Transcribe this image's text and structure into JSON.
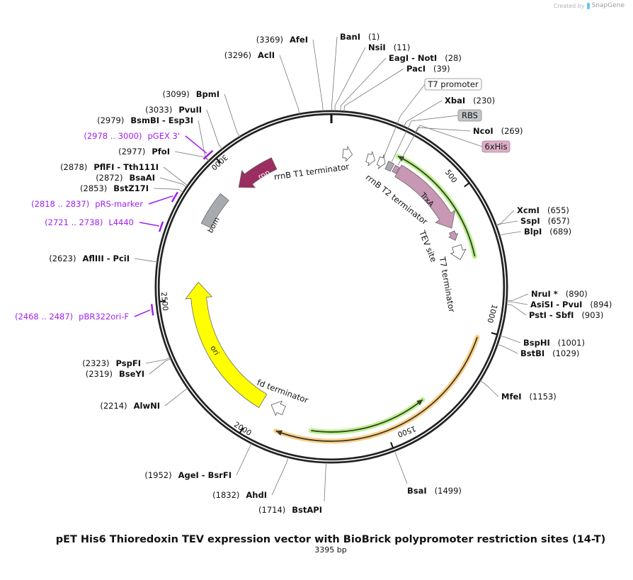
{
  "credit": {
    "prefix": "Created by",
    "brand": "SnapGene"
  },
  "title": "pET His6 Thioredoxin TEV expression vector with BioBrick polypromoter restriction sites (14-T)",
  "length_label": "3395 bp",
  "total_bp": 3395,
  "colors": {
    "backbone": "#222222",
    "primer": "#a020f0",
    "trxa": "#c897b3",
    "rop": "#9b2d61",
    "ori": "#ffff00",
    "grey_feature": "#a7abaf",
    "green_glow": "#b9f28c",
    "orange_glow": "#ffd08a"
  },
  "ticks": [
    {
      "bp": 500,
      "label": "500"
    },
    {
      "bp": 1000,
      "label": "1000"
    },
    {
      "bp": 1500,
      "label": "1500"
    },
    {
      "bp": 2000,
      "label": "2000"
    },
    {
      "bp": 2500,
      "label": "2500"
    },
    {
      "bp": 3000,
      "label": "3000"
    }
  ],
  "enzymes": [
    {
      "name": "AfeI",
      "pos": "(3369)",
      "bp": 3369
    },
    {
      "name": "AclI",
      "pos": "(3296)",
      "bp": 3296
    },
    {
      "name": "BpmI",
      "pos": "(3099)",
      "bp": 3099
    },
    {
      "name": "PvuII",
      "pos": "(3033)",
      "bp": 3033
    },
    {
      "name": "BsmBI  - Esp3I",
      "pos": "(2979)",
      "bp": 2979
    },
    {
      "name": "PfoI",
      "pos": "(2977)",
      "bp": 2977
    },
    {
      "name": "PflFI  - Tth111I",
      "pos": "(2878)",
      "bp": 2878
    },
    {
      "name": "BsaAI",
      "pos": "(2872)",
      "bp": 2872
    },
    {
      "name": "BstZ17I",
      "pos": "(2853)",
      "bp": 2853
    },
    {
      "name": "AflIII  - PciI",
      "pos": "(2623)",
      "bp": 2623
    },
    {
      "name": "PspFI",
      "pos": "(2323)",
      "bp": 2323
    },
    {
      "name": "BseYI",
      "pos": "(2319)",
      "bp": 2319
    },
    {
      "name": "AlwNI",
      "pos": "(2214)",
      "bp": 2214
    },
    {
      "name": "AgeI  - BsrFI",
      "pos": "(1952)",
      "bp": 1952
    },
    {
      "name": "AhdI",
      "pos": "(1832)",
      "bp": 1832
    },
    {
      "name": "BstAPI",
      "pos": "(1714)",
      "bp": 1714
    },
    {
      "name": "BanI",
      "pos": "(1)",
      "bp": 1
    },
    {
      "name": "NsiI",
      "pos": "(11)",
      "bp": 11
    },
    {
      "name": "EagI  - NotI",
      "pos": "(28)",
      "bp": 28
    },
    {
      "name": "PacI",
      "pos": "(39)",
      "bp": 39
    },
    {
      "name": "XbaI",
      "pos": "(230)",
      "bp": 230
    },
    {
      "name": "NcoI",
      "pos": "(269)",
      "bp": 269
    },
    {
      "name": "XcmI",
      "pos": "(655)",
      "bp": 655
    },
    {
      "name": "SspI",
      "pos": "(657)",
      "bp": 657
    },
    {
      "name": "BlpI",
      "pos": "(689)",
      "bp": 689
    },
    {
      "name": "NruI *",
      "pos": "(890)",
      "bp": 890
    },
    {
      "name": "AsiSI  - PvuI",
      "pos": "(894)",
      "bp": 894
    },
    {
      "name": "PstI  - SbfI",
      "pos": "(903)",
      "bp": 903
    },
    {
      "name": "BspHI",
      "pos": "(1001)",
      "bp": 1001
    },
    {
      "name": "BstBI",
      "pos": "(1029)",
      "bp": 1029
    },
    {
      "name": "MfeI",
      "pos": "(1153)",
      "bp": 1153
    },
    {
      "name": "BsaI",
      "pos": "(1499)",
      "bp": 1499
    }
  ],
  "primers": [
    {
      "name": "pGEX 3'",
      "range": "(2978 .. 3000)",
      "start": 2978,
      "end": 3000
    },
    {
      "name": "pRS-marker",
      "range": "(2818 .. 2837)",
      "start": 2818,
      "end": 2837
    },
    {
      "name": "L4440",
      "range": "(2721 .. 2738)",
      "start": 2721,
      "end": 2738
    },
    {
      "name": "pBR322ori-F",
      "range": "(2468 .. 2487)",
      "start": 2468,
      "end": 2487
    }
  ],
  "features": [
    {
      "name": "rrnB T1 terminator",
      "start": 47,
      "end": 85,
      "kind": "arrow",
      "color": "#ffffff"
    },
    {
      "name": "rrnB T2 terminator",
      "start": 146,
      "end": 179,
      "kind": "arrow",
      "color": "#ffffff"
    },
    {
      "name": "T7 promoter",
      "start": 193,
      "end": 222,
      "kind": "arrow",
      "color": "#ffffff"
    },
    {
      "name": "RBS",
      "start": 231,
      "end": 255,
      "kind": "box",
      "color": "#a7abaf"
    },
    {
      "name": "6xHis",
      "start": 262,
      "end": 280,
      "kind": "box",
      "color": "#c897b3"
    },
    {
      "name": "TrxA",
      "start": 283,
      "end": 604,
      "kind": "arrow",
      "color": "#c897b3"
    },
    {
      "name": "TEV site",
      "start": 618,
      "end": 655,
      "kind": "arrow",
      "color": "#c897b3"
    },
    {
      "name": "T7 terminator",
      "start": 679,
      "end": 736,
      "kind": "arrow",
      "color": "#ffffff"
    },
    {
      "name": "fd terminator",
      "start": 1896,
      "end": 1952,
      "kind": "arrow",
      "color": "#ffffff"
    },
    {
      "name": "ori",
      "start": 1990,
      "end": 2565,
      "kind": "arrow",
      "color": "#ffff00"
    },
    {
      "name": "bom",
      "start": 2792,
      "end": 2924,
      "kind": "box",
      "color": "#a7abaf"
    },
    {
      "name": "rop",
      "start": 2990,
      "end": 3160,
      "kind": "arrow",
      "color": "#9b2d61"
    }
  ],
  "orfs": [
    {
      "start": 255,
      "end": 736,
      "color": "#b9f28c"
    },
    {
      "start": 1028,
      "end": 1896,
      "color": "#ffd08a"
    },
    {
      "start": 1330,
      "end": 1773,
      "color": "#b9f28c"
    }
  ]
}
